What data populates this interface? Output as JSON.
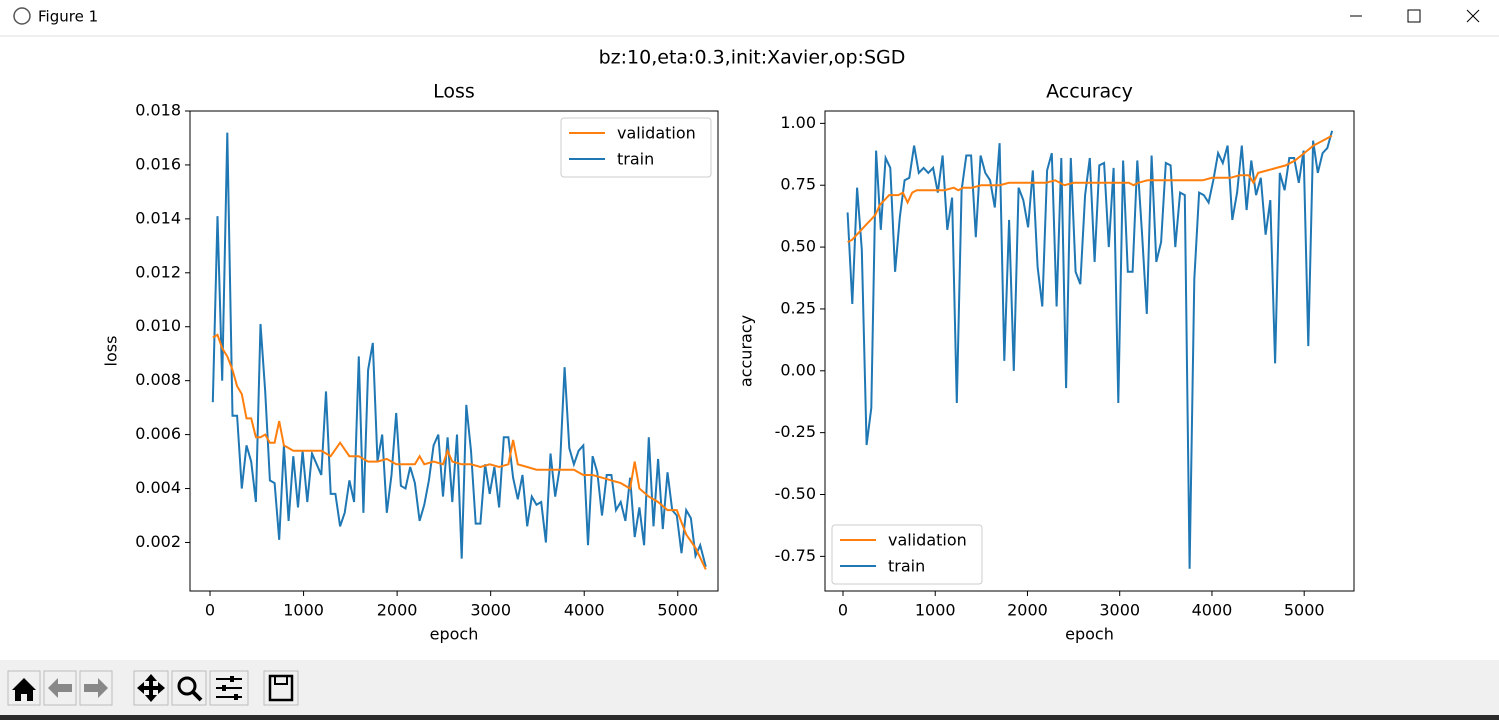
{
  "window": {
    "title": "Figure 1"
  },
  "suptitle": "bz:10,eta:0.3,init:Xavier,op:SGD",
  "chart_data": [
    {
      "type": "line",
      "title": "Loss",
      "x_label": "epoch",
      "y_label": "loss",
      "xlim": [
        -214,
        5430
      ],
      "ylim": [
        0.0002,
        0.018
      ],
      "xticks": [
        0,
        1000,
        2000,
        3000,
        4000,
        5000
      ],
      "yticks": [
        0.002,
        0.004,
        0.006,
        0.008,
        {
          "value": 0.01,
          "label": "0.010"
        },
        0.012,
        0.014,
        0.016,
        0.018
      ],
      "legend": "upper right",
      "series": [
        {
          "name": "validation",
          "color": "#ff7f0e",
          "x": [
            30,
            80,
            130,
            185,
            240,
            290,
            340,
            390,
            440,
            490,
            540,
            590,
            640,
            690,
            740,
            790,
            890,
            990,
            1090,
            1190,
            1290,
            1390,
            1490,
            1590,
            1690,
            1790,
            1890,
            1990,
            2090,
            2190,
            2240,
            2290,
            2390,
            2490,
            2540,
            2590,
            2690,
            2790,
            2890,
            2990,
            3090,
            3190,
            3240,
            3290,
            3390,
            3490,
            3590,
            3690,
            3790,
            3890,
            3990,
            4090,
            4190,
            4290,
            4390,
            4490,
            4540,
            4590,
            4690,
            4790,
            4890,
            4990,
            5090,
            5190,
            5300
          ],
          "values": [
            0.0096,
            0.0097,
            0.0092,
            0.0089,
            0.0084,
            0.0078,
            0.0075,
            0.0066,
            0.0066,
            0.0059,
            0.0059,
            0.006,
            0.0057,
            0.0057,
            0.0065,
            0.0056,
            0.0054,
            0.0054,
            0.0054,
            0.0054,
            0.0052,
            0.0057,
            0.0052,
            0.0052,
            0.005,
            0.005,
            0.0051,
            0.0049,
            0.0049,
            0.0049,
            0.0052,
            0.0049,
            0.005,
            0.0049,
            0.0054,
            0.005,
            0.0049,
            0.0049,
            0.0048,
            0.0049,
            0.0048,
            0.0049,
            0.0058,
            0.0049,
            0.0048,
            0.0047,
            0.0047,
            0.0047,
            0.0047,
            0.0047,
            0.0045,
            0.0045,
            0.0044,
            0.0043,
            0.0042,
            0.004,
            0.005,
            0.004,
            0.0037,
            0.0035,
            0.0032,
            0.0032,
            0.0023,
            0.0018,
            0.001
          ]
        },
        {
          "name": "train",
          "color": "#1f77b4",
          "x": [
            30,
            80,
            130,
            185,
            240,
            290,
            340,
            390,
            440,
            490,
            540,
            590,
            640,
            690,
            740,
            790,
            840,
            890,
            940,
            990,
            1040,
            1090,
            1140,
            1190,
            1240,
            1290,
            1340,
            1390,
            1440,
            1490,
            1540,
            1590,
            1640,
            1690,
            1740,
            1790,
            1840,
            1890,
            1940,
            1990,
            2040,
            2090,
            2140,
            2190,
            2240,
            2290,
            2340,
            2390,
            2440,
            2490,
            2540,
            2590,
            2640,
            2690,
            2740,
            2790,
            2840,
            2890,
            2940,
            2990,
            3040,
            3090,
            3140,
            3190,
            3240,
            3290,
            3340,
            3390,
            3440,
            3490,
            3540,
            3590,
            3640,
            3690,
            3740,
            3790,
            3840,
            3890,
            3940,
            3990,
            4040,
            4090,
            4140,
            4190,
            4240,
            4290,
            4340,
            4390,
            4440,
            4490,
            4540,
            4590,
            4640,
            4690,
            4740,
            4790,
            4840,
            4890,
            4940,
            4990,
            5040,
            5090,
            5140,
            5190,
            5240,
            5300
          ],
          "values": [
            0.0072,
            0.0141,
            0.008,
            0.0172,
            0.0067,
            0.0067,
            0.004,
            0.0056,
            0.005,
            0.0035,
            0.0101,
            0.0076,
            0.0043,
            0.0042,
            0.0021,
            0.0056,
            0.0028,
            0.0052,
            0.0033,
            0.0054,
            0.0035,
            0.0053,
            0.0049,
            0.0045,
            0.0076,
            0.0038,
            0.0038,
            0.0026,
            0.0031,
            0.0043,
            0.0035,
            0.0089,
            0.0031,
            0.0084,
            0.0094,
            0.005,
            0.006,
            0.0031,
            0.0045,
            0.0068,
            0.0041,
            0.004,
            0.0048,
            0.0042,
            0.0028,
            0.0034,
            0.0043,
            0.0056,
            0.006,
            0.0037,
            0.0059,
            0.0035,
            0.006,
            0.0014,
            0.0071,
            0.0054,
            0.0027,
            0.0027,
            0.0049,
            0.0038,
            0.0048,
            0.0033,
            0.0059,
            0.0059,
            0.0044,
            0.0036,
            0.0045,
            0.0026,
            0.0037,
            0.0034,
            0.0035,
            0.002,
            0.0053,
            0.0037,
            0.0048,
            0.0085,
            0.0055,
            0.0049,
            0.0054,
            0.0056,
            0.0019,
            0.0052,
            0.0046,
            0.003,
            0.0045,
            0.0045,
            0.0032,
            0.0035,
            0.0028,
            0.0044,
            0.0022,
            0.0033,
            0.0019,
            0.0059,
            0.0026,
            0.0051,
            0.0025,
            0.0046,
            0.0032,
            0.003,
            0.0016,
            0.0032,
            0.0029,
            0.0015,
            0.0019,
            0.0011
          ]
        }
      ]
    },
    {
      "type": "line",
      "title": "Accuracy",
      "x_label": "epoch",
      "y_label": "accuracy",
      "xlim": [
        -195,
        5540
      ],
      "ylim": [
        -0.89,
        1.05
      ],
      "xticks": [
        0,
        1000,
        2000,
        3000,
        4000,
        5000
      ],
      "yticks": [
        -0.75,
        {
          "value": -0.5,
          "label": "-0.50"
        },
        -0.25,
        {
          "value": 0,
          "label": "0.00"
        },
        0.25,
        {
          "value": 0.5,
          "label": "0.50"
        },
        0.75,
        {
          "value": 1,
          "label": "1.00"
        }
      ],
      "legend": "lower left",
      "series": [
        {
          "name": "validation",
          "color": "#ff7f0e",
          "x": [
            50,
            100,
            150,
            200,
            250,
            300,
            350,
            400,
            450,
            500,
            550,
            600,
            650,
            700,
            750,
            800,
            900,
            1000,
            1100,
            1200,
            1250,
            1300,
            1400,
            1500,
            1600,
            1700,
            1800,
            1900,
            2000,
            2100,
            2200,
            2300,
            2400,
            2500,
            2600,
            2700,
            2800,
            2900,
            3000,
            3100,
            3150,
            3200,
            3300,
            3400,
            3500,
            3600,
            3700,
            3800,
            3900,
            4000,
            4100,
            4200,
            4300,
            4400,
            4450,
            4500,
            4600,
            4700,
            4800,
            4900,
            5000,
            5100,
            5200,
            5300
          ],
          "values": [
            0.52,
            0.53,
            0.55,
            0.57,
            0.59,
            0.61,
            0.63,
            0.67,
            0.69,
            0.71,
            0.71,
            0.71,
            0.72,
            0.68,
            0.72,
            0.73,
            0.73,
            0.73,
            0.73,
            0.74,
            0.73,
            0.74,
            0.74,
            0.75,
            0.75,
            0.75,
            0.76,
            0.76,
            0.76,
            0.76,
            0.76,
            0.77,
            0.75,
            0.76,
            0.76,
            0.76,
            0.76,
            0.76,
            0.76,
            0.76,
            0.75,
            0.76,
            0.77,
            0.77,
            0.77,
            0.77,
            0.77,
            0.77,
            0.77,
            0.78,
            0.78,
            0.78,
            0.79,
            0.79,
            0.76,
            0.8,
            0.81,
            0.82,
            0.83,
            0.85,
            0.88,
            0.91,
            0.93,
            0.95
          ]
        },
        {
          "name": "train",
          "color": "#1f77b4",
          "x": [
            50,
            101,
            153,
            204,
            256,
            307,
            359,
            410,
            462,
            513,
            565,
            616,
            668,
            719,
            771,
            822,
            874,
            925,
            977,
            1028,
            1080,
            1131,
            1183,
            1234,
            1286,
            1337,
            1389,
            1440,
            1492,
            1543,
            1595,
            1646,
            1698,
            1749,
            1801,
            1852,
            1904,
            1955,
            2007,
            2058,
            2110,
            2161,
            2213,
            2264,
            2316,
            2367,
            2419,
            2470,
            2522,
            2573,
            2625,
            2676,
            2728,
            2779,
            2831,
            2882,
            2934,
            2985,
            3037,
            3088,
            3140,
            3191,
            3243,
            3294,
            3346,
            3397,
            3449,
            3500,
            3552,
            3603,
            3655,
            3706,
            3758,
            3809,
            3861,
            3912,
            3964,
            4015,
            4067,
            4118,
            4170,
            4221,
            4273,
            4324,
            4376,
            4427,
            4479,
            4530,
            4582,
            4633,
            4685,
            4736,
            4788,
            4839,
            4891,
            4942,
            4994,
            5045,
            5097,
            5148,
            5200,
            5251,
            5303
          ],
          "values": [
            0.64,
            0.27,
            0.74,
            0.49,
            -0.3,
            -0.15,
            0.89,
            0.57,
            0.86,
            0.82,
            0.4,
            0.62,
            0.77,
            0.78,
            0.91,
            0.8,
            0.82,
            0.8,
            0.82,
            0.72,
            0.87,
            0.57,
            0.7,
            -0.13,
            0.73,
            0.87,
            0.87,
            0.54,
            0.87,
            0.8,
            0.77,
            0.66,
            0.92,
            0.04,
            0.61,
            0,
            0.74,
            0.69,
            0.58,
            0.81,
            0.42,
            0.26,
            0.81,
            0.88,
            0.26,
            0.86,
            -0.07,
            0.86,
            0.4,
            0.35,
            0.71,
            0.86,
            0.44,
            0.83,
            0.84,
            0.5,
            0.82,
            -0.13,
            0.85,
            0.4,
            0.4,
            0.85,
            0.55,
            0.23,
            0.87,
            0.44,
            0.52,
            0.84,
            0.83,
            0.5,
            0.72,
            0.71,
            -0.8,
            0.37,
            0.72,
            0.71,
            0.68,
            0.77,
            0.88,
            0.84,
            0.91,
            0.61,
            0.72,
            0.91,
            0.65,
            0.85,
            0.71,
            0.78,
            0.55,
            0.69,
            0.03,
            0.8,
            0.73,
            0.86,
            0.86,
            0.76,
            0.89,
            0.1,
            0.93,
            0.8,
            0.88,
            0.9,
            0.97
          ]
        }
      ]
    }
  ]
}
